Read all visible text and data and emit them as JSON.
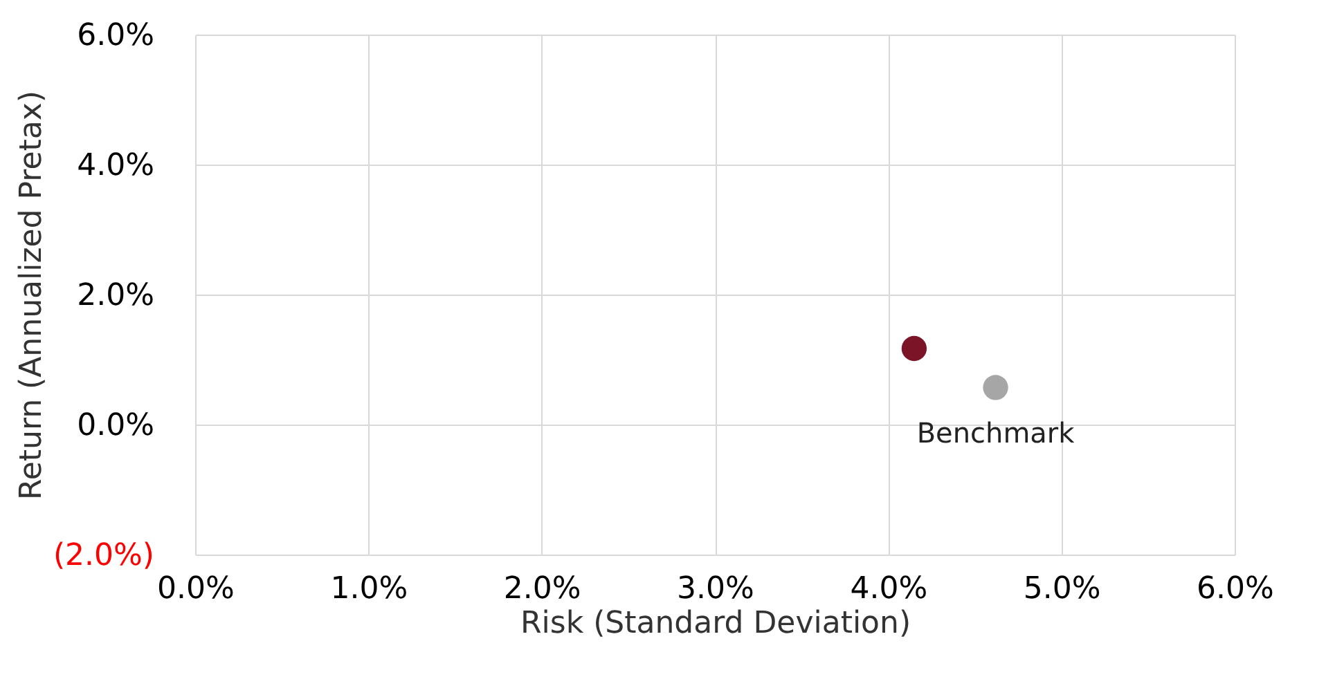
{
  "chart_data": {
    "type": "scatter",
    "xlabel": "Risk (Standard Deviation)",
    "ylabel": "Return (Annualized Pretax)",
    "series": [
      {
        "color": "#7b1426",
        "x": [
          4.15
        ],
        "values": [
          1.17
        ]
      },
      {
        "name": "Benchmark",
        "color": "#a6a6a6",
        "x": [
          4.62
        ],
        "values": [
          0.57
        ]
      }
    ],
    "xlim": [
      0,
      6
    ],
    "ylim": [
      -2,
      6
    ],
    "xticks": [
      {
        "value": 0,
        "label": "0.0%"
      },
      {
        "value": 1,
        "label": "1.0%"
      },
      {
        "value": 2,
        "label": "2.0%"
      },
      {
        "value": 3,
        "label": "3.0%"
      },
      {
        "value": 4,
        "label": "4.0%"
      },
      {
        "value": 5,
        "label": "5.0%"
      },
      {
        "value": 6,
        "label": "6.0%"
      }
    ],
    "yticks": [
      {
        "value": -2,
        "label": "(2.0%)"
      },
      {
        "value": 0,
        "label": "0.0%"
      },
      {
        "value": 2,
        "label": "2.0%"
      },
      {
        "value": 4,
        "label": "4.0%"
      },
      {
        "value": 6,
        "label": "6.0%"
      }
    ],
    "grid": true,
    "marker": "circle"
  }
}
